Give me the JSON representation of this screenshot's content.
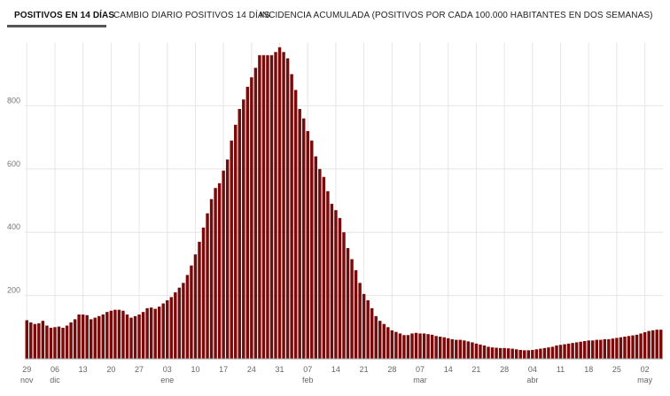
{
  "tabs": [
    {
      "label": "POSITIVOS EN 14 DÍAS",
      "active": true
    },
    {
      "label": "CAMBIO DIARIO POSITIVOS 14 DÍAS",
      "active": false
    },
    {
      "label": "INCIDENCIA ACUMULADA (POSITIVOS POR CADA 100.000 HABITANTES EN DOS SEMANAS)",
      "active": false
    }
  ],
  "colors": {
    "bar": "#7a0a0a",
    "grid": "#e6e6e6",
    "active_tab_underline": "#555555"
  },
  "chart_data": {
    "type": "bar",
    "title": "",
    "xlabel": "",
    "ylabel": "",
    "ylim": [
      0,
      1000
    ],
    "yticks": [
      200,
      400,
      600,
      800
    ],
    "grid": true,
    "x_tick_labels": [
      {
        "day": "29",
        "month": "nov",
        "index": 0
      },
      {
        "day": "06",
        "month": "dic",
        "index": 7
      },
      {
        "day": "13",
        "month": "",
        "index": 14
      },
      {
        "day": "20",
        "month": "",
        "index": 21
      },
      {
        "day": "27",
        "month": "",
        "index": 28
      },
      {
        "day": "03",
        "month": "ene",
        "index": 35
      },
      {
        "day": "10",
        "month": "",
        "index": 42
      },
      {
        "day": "17",
        "month": "",
        "index": 49
      },
      {
        "day": "24",
        "month": "",
        "index": 56
      },
      {
        "day": "31",
        "month": "",
        "index": 63
      },
      {
        "day": "07",
        "month": "feb",
        "index": 70
      },
      {
        "day": "14",
        "month": "",
        "index": 77
      },
      {
        "day": "21",
        "month": "",
        "index": 84
      },
      {
        "day": "28",
        "month": "",
        "index": 91
      },
      {
        "day": "07",
        "month": "mar",
        "index": 98
      },
      {
        "day": "14",
        "month": "",
        "index": 105
      },
      {
        "day": "21",
        "month": "",
        "index": 112
      },
      {
        "day": "28",
        "month": "",
        "index": 119
      },
      {
        "day": "04",
        "month": "abr",
        "index": 126
      },
      {
        "day": "11",
        "month": "",
        "index": 133
      },
      {
        "day": "18",
        "month": "",
        "index": 140
      },
      {
        "day": "25",
        "month": "",
        "index": 147
      },
      {
        "day": "02",
        "month": "may",
        "index": 154
      }
    ],
    "values": [
      122,
      115,
      110,
      112,
      120,
      105,
      98,
      100,
      102,
      98,
      105,
      115,
      125,
      140,
      140,
      138,
      125,
      130,
      135,
      140,
      148,
      152,
      155,
      155,
      152,
      140,
      130,
      135,
      140,
      148,
      160,
      162,
      158,
      165,
      175,
      185,
      195,
      210,
      225,
      240,
      265,
      295,
      330,
      370,
      415,
      460,
      505,
      540,
      555,
      595,
      630,
      690,
      740,
      790,
      820,
      860,
      890,
      920,
      960,
      960,
      960,
      960,
      970,
      985,
      970,
      950,
      900,
      850,
      790,
      760,
      720,
      690,
      640,
      600,
      575,
      530,
      490,
      470,
      445,
      400,
      350,
      315,
      280,
      240,
      205,
      185,
      160,
      135,
      120,
      110,
      100,
      90,
      85,
      80,
      75,
      75,
      80,
      82,
      80,
      80,
      78,
      76,
      72,
      70,
      68,
      65,
      62,
      60,
      60,
      58,
      55,
      52,
      48,
      45,
      42,
      38,
      36,
      35,
      34,
      34,
      33,
      32,
      30,
      28,
      27,
      27,
      28,
      30,
      32,
      34,
      36,
      38,
      42,
      44,
      46,
      48,
      50,
      52,
      54,
      56,
      58,
      58,
      60,
      60,
      62,
      62,
      64,
      66,
      68,
      70,
      72,
      74,
      76,
      80,
      84,
      88,
      90,
      92,
      92
    ]
  }
}
